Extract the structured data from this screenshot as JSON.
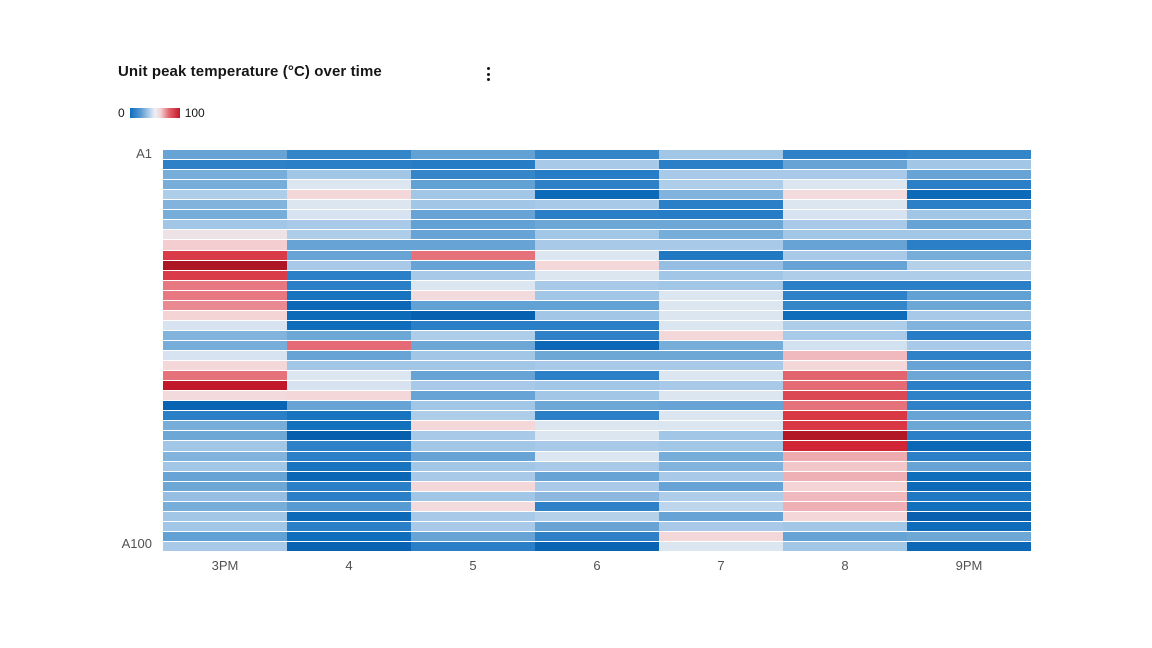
{
  "header": {
    "title": "Unit peak temperature (°C) over time"
  },
  "legend": {
    "min": "0",
    "max": "100"
  },
  "chart_data": {
    "type": "heatmap",
    "title": "Unit peak temperature (°C) over time",
    "legend_range": [
      0,
      100
    ],
    "x_categories": [
      "3PM",
      "4",
      "5",
      "6",
      "7",
      "8",
      "9PM"
    ],
    "y_axis": {
      "first_label": "A1",
      "last_label": "A100",
      "rows_shown": 40
    },
    "colorscale": {
      "min": 0,
      "mid": 50,
      "max": 100,
      "min_color_hex": "#02559f",
      "mid_color_hex": "#e9edf4",
      "max_color_hex": "#8c0c18",
      "description": "diverging blue-white-red"
    },
    "values": [
      [
        33,
        25,
        32,
        25,
        40,
        24,
        25
      ],
      [
        24,
        23,
        22,
        41,
        23,
        33,
        40
      ],
      [
        35,
        40,
        25,
        22,
        41,
        41,
        33
      ],
      [
        35,
        49,
        32,
        24,
        42,
        49,
        23
      ],
      [
        42,
        57,
        40,
        13,
        36,
        56,
        13
      ],
      [
        36,
        49,
        40,
        41,
        23,
        49,
        23
      ],
      [
        35,
        48,
        33,
        23,
        22,
        48,
        40
      ],
      [
        40,
        41,
        32,
        34,
        34,
        41,
        33
      ],
      [
        53,
        42,
        33,
        40,
        35,
        40,
        40
      ],
      [
        59,
        33,
        33,
        41,
        41,
        33,
        23
      ],
      [
        80,
        33,
        72,
        49,
        20,
        41,
        35
      ],
      [
        92,
        41,
        33,
        57,
        38,
        33,
        43
      ],
      [
        80,
        23,
        41,
        49,
        40,
        42,
        42
      ],
      [
        71,
        23,
        49,
        41,
        40,
        23,
        23
      ],
      [
        71,
        18,
        56,
        40,
        49,
        24,
        32
      ],
      [
        69,
        12,
        32,
        32,
        49,
        25,
        34
      ],
      [
        58,
        13,
        8,
        40,
        49,
        14,
        41
      ],
      [
        48,
        14,
        23,
        23,
        49,
        42,
        36
      ],
      [
        36,
        34,
        42,
        24,
        57,
        41,
        22
      ],
      [
        35,
        73,
        34,
        12,
        35,
        47,
        41
      ],
      [
        48,
        33,
        40,
        34,
        34,
        62,
        24
      ],
      [
        57,
        40,
        40,
        41,
        41,
        57,
        33
      ],
      [
        72,
        49,
        33,
        23,
        49,
        74,
        34
      ],
      [
        88,
        48,
        41,
        40,
        41,
        73,
        23
      ],
      [
        56,
        57,
        33,
        40,
        49,
        78,
        24
      ],
      [
        10,
        33,
        40,
        34,
        33,
        72,
        24
      ],
      [
        23,
        18,
        42,
        23,
        49,
        81,
        33
      ],
      [
        35,
        16,
        57,
        49,
        49,
        81,
        34
      ],
      [
        34,
        6,
        41,
        49,
        40,
        91,
        23
      ],
      [
        40,
        24,
        40,
        41,
        40,
        85,
        12
      ],
      [
        36,
        23,
        33,
        49,
        35,
        65,
        23
      ],
      [
        40,
        18,
        40,
        41,
        36,
        60,
        33
      ],
      [
        33,
        11,
        41,
        33,
        41,
        64,
        15
      ],
      [
        34,
        23,
        57,
        41,
        33,
        58,
        13
      ],
      [
        38,
        23,
        40,
        37,
        42,
        62,
        20
      ],
      [
        35,
        30,
        56,
        24,
        44,
        64,
        16
      ],
      [
        40,
        13,
        41,
        43,
        33,
        57,
        7
      ],
      [
        40,
        23,
        41,
        33,
        41,
        40,
        14
      ],
      [
        32,
        15,
        33,
        24,
        57,
        33,
        34
      ],
      [
        41,
        9,
        23,
        10,
        49,
        40,
        12
      ]
    ]
  }
}
